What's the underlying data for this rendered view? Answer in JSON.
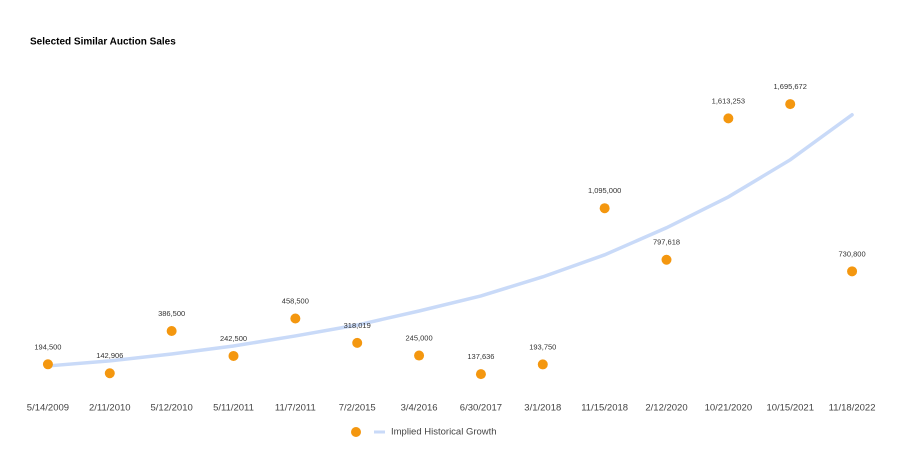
{
  "chart_data": {
    "type": "scatter",
    "title": "Selected Similar Auction Sales",
    "categories": [
      "5/14/2009",
      "2/11/2010",
      "5/12/2010",
      "5/11/2011",
      "11/7/2011",
      "7/2/2015",
      "3/4/2016",
      "6/30/2017",
      "3/1/2018",
      "11/15/2018",
      "2/12/2020",
      "10/21/2020",
      "10/15/2021",
      "11/18/2022"
    ],
    "ylim": [
      0,
      1800000
    ],
    "series": [
      {
        "type": "scatter",
        "color": "#f4970f",
        "values": [
          194500,
          142906,
          386500,
          242500,
          458500,
          318019,
          245000,
          137636,
          193750,
          1095000,
          797618,
          1613253,
          1695672,
          730800
        ],
        "value_labels": [
          "194,500",
          "142,906",
          "386,500",
          "242,500",
          "458,500",
          "318,019",
          "245,000",
          "137,636",
          "193,750",
          "1,095,000",
          "797,618",
          "1,613,253",
          "1,695,672",
          "730,800"
        ]
      },
      {
        "type": "line",
        "name": "Implied Historical Growth",
        "color": "#c9daf8",
        "values": [
          185000,
          214000,
          254000,
          300000,
          358000,
          421000,
          502000,
          589000,
          699000,
          826000,
          982000,
          1160000,
          1374000,
          1634000
        ]
      }
    ],
    "grid": false
  }
}
